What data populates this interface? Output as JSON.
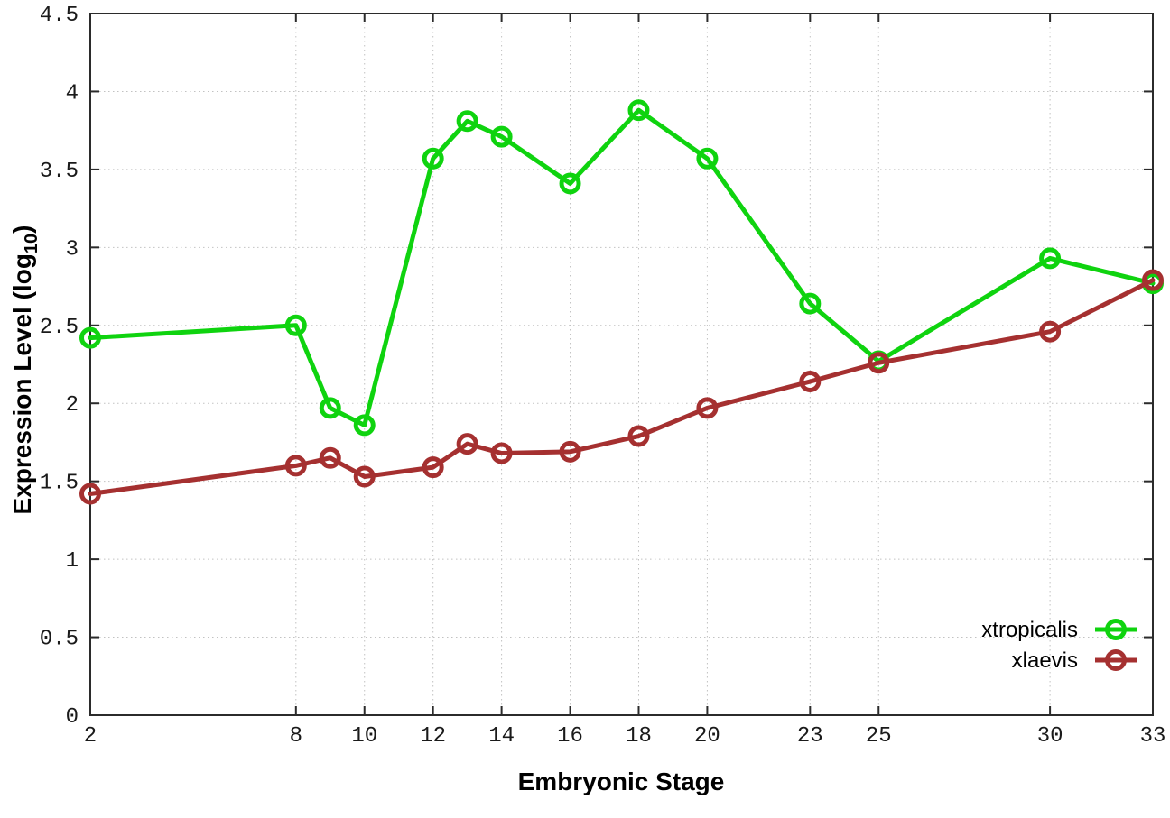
{
  "chart_data": {
    "type": "line",
    "title": "",
    "xlabel": "Embryonic Stage",
    "ylabel": "Expression Level (log10)",
    "ylabel_main": "Expression Level (log",
    "ylabel_sub": "10",
    "ylabel_end": ")",
    "x": [
      2,
      8,
      9,
      10,
      12,
      13,
      14,
      16,
      18,
      20,
      23,
      25,
      30,
      33
    ],
    "xticks": [
      2,
      8,
      10,
      12,
      14,
      16,
      18,
      20,
      23,
      25,
      30,
      33
    ],
    "yticks": [
      0,
      0.5,
      1,
      1.5,
      2,
      2.5,
      3,
      3.5,
      4,
      4.5
    ],
    "xlim": [
      2,
      33
    ],
    "ylim": [
      0,
      4.5
    ],
    "grid": true,
    "legend_position": "inside-bottom-right",
    "series": [
      {
        "name": "xtropicalis",
        "color": "#0fd30f",
        "marker": "open-circle",
        "values": [
          2.42,
          2.5,
          1.97,
          1.86,
          3.57,
          3.81,
          3.71,
          3.41,
          3.88,
          3.57,
          2.64,
          2.27,
          2.93,
          2.77
        ]
      },
      {
        "name": "xlaevis",
        "color": "#a53030",
        "marker": "open-circle",
        "values": [
          1.42,
          1.6,
          1.65,
          1.53,
          1.59,
          1.74,
          1.68,
          1.69,
          1.79,
          1.97,
          2.14,
          2.26,
          2.46,
          2.79
        ]
      }
    ]
  },
  "style": {
    "background": "#ffffff",
    "border_color": "#2b2b2b",
    "grid_color": "#c2c2c2",
    "tick_label_color": "#1a1a1a",
    "axis_label_color": "#000000",
    "legend_text_color": "#000000"
  }
}
